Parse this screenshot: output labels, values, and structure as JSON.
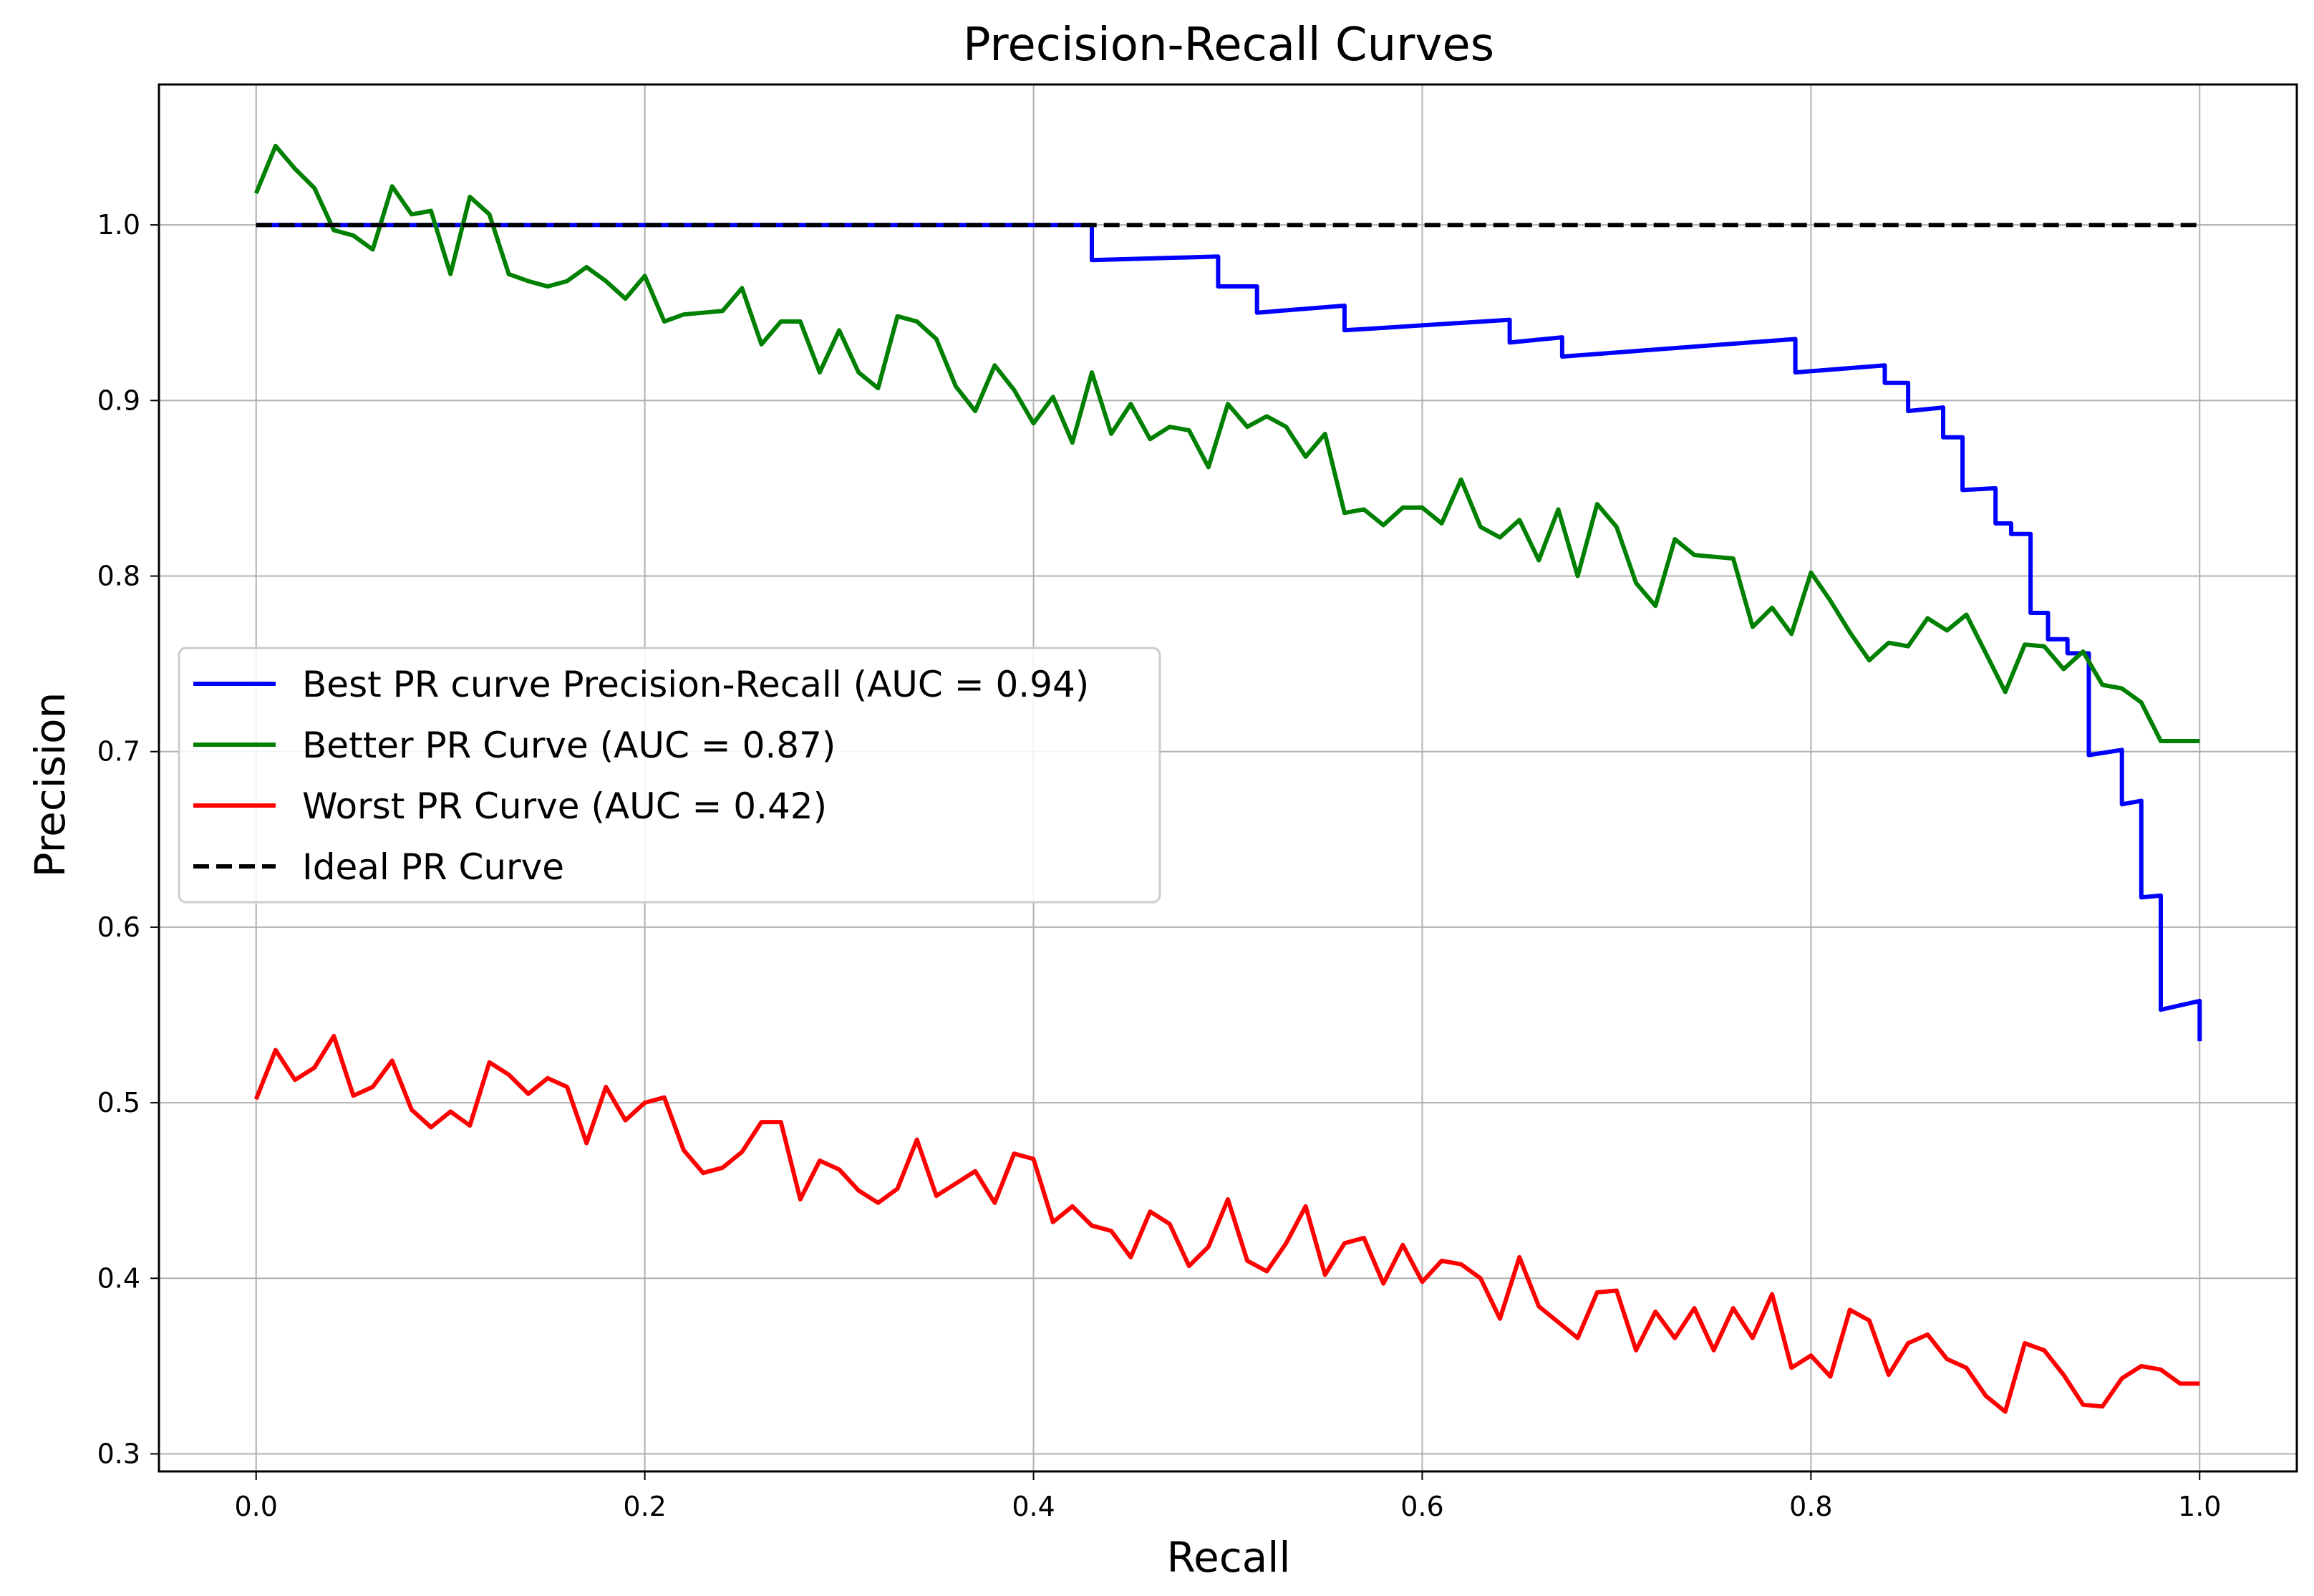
{
  "chart_data": {
    "type": "line",
    "title": "Precision-Recall Curves",
    "xlabel": "Recall",
    "ylabel": "Precision",
    "xlim": [
      -0.05,
      1.05
    ],
    "ylim": [
      0.29,
      1.08
    ],
    "xticks": [
      0.0,
      0.2,
      0.4,
      0.6,
      0.8,
      1.0
    ],
    "xtick_labels": [
      "0.0",
      "0.2",
      "0.4",
      "0.6",
      "0.8",
      "1.0"
    ],
    "yticks": [
      0.3,
      0.4,
      0.5,
      0.6,
      0.7,
      0.8,
      0.9,
      1.0
    ],
    "ytick_labels": [
      "0.3",
      "0.4",
      "0.5",
      "0.6",
      "0.7",
      "0.8",
      "0.9",
      "1.0"
    ],
    "grid": true,
    "legend_position": "center-left",
    "series": [
      {
        "name": "Best PR curve Precision-Recall (AUC = 0.94)",
        "color": "#0000ff",
        "style": "solid",
        "x": [
          0.0,
          0.43,
          0.43,
          0.495,
          0.495,
          0.515,
          0.515,
          0.56,
          0.56,
          0.645,
          0.645,
          0.672,
          0.672,
          0.792,
          0.792,
          0.838,
          0.838,
          0.85,
          0.85,
          0.868,
          0.868,
          0.878,
          0.878,
          0.895,
          0.895,
          0.903,
          0.903,
          0.913,
          0.913,
          0.922,
          0.922,
          0.932,
          0.932,
          0.943,
          0.943,
          0.96,
          0.96,
          0.97,
          0.97,
          0.98,
          0.98,
          1.0,
          1.0
        ],
        "y": [
          1.0,
          1.0,
          0.98,
          0.982,
          0.965,
          0.965,
          0.95,
          0.954,
          0.94,
          0.946,
          0.933,
          0.936,
          0.925,
          0.935,
          0.916,
          0.92,
          0.91,
          0.91,
          0.894,
          0.896,
          0.879,
          0.879,
          0.849,
          0.85,
          0.83,
          0.83,
          0.824,
          0.824,
          0.779,
          0.779,
          0.764,
          0.764,
          0.756,
          0.756,
          0.698,
          0.701,
          0.67,
          0.672,
          0.617,
          0.618,
          0.553,
          0.558,
          0.535
        ]
      },
      {
        "name": "Better PR Curve (AUC = 0.87)",
        "color": "#008000",
        "style": "solid",
        "x": [
          0.0,
          0.01,
          0.02,
          0.03,
          0.04,
          0.05,
          0.06,
          0.07,
          0.08,
          0.09,
          0.1,
          0.11,
          0.12,
          0.13,
          0.14,
          0.15,
          0.16,
          0.17,
          0.18,
          0.19,
          0.2,
          0.21,
          0.22,
          0.23,
          0.24,
          0.25,
          0.26,
          0.27,
          0.28,
          0.29,
          0.3,
          0.31,
          0.32,
          0.33,
          0.34,
          0.35,
          0.36,
          0.37,
          0.38,
          0.39,
          0.4,
          0.41,
          0.42,
          0.43,
          0.44,
          0.45,
          0.46,
          0.47,
          0.48,
          0.49,
          0.5,
          0.51,
          0.52,
          0.53,
          0.54,
          0.55,
          0.56,
          0.57,
          0.58,
          0.59,
          0.6,
          0.61,
          0.62,
          0.63,
          0.64,
          0.65,
          0.66,
          0.67,
          0.68,
          0.69,
          0.7,
          0.71,
          0.72,
          0.73,
          0.74,
          0.75,
          0.76,
          0.77,
          0.78,
          0.79,
          0.8,
          0.81,
          0.82,
          0.83,
          0.84,
          0.85,
          0.86,
          0.87,
          0.88,
          0.89,
          0.9,
          0.91,
          0.92,
          0.93,
          0.94,
          0.95,
          0.96,
          0.97,
          0.98,
          0.99,
          1.0
        ],
        "y": [
          1.018,
          1.045,
          1.032,
          1.021,
          0.997,
          0.994,
          0.986,
          1.022,
          1.006,
          1.008,
          0.972,
          1.016,
          1.006,
          0.972,
          0.968,
          0.965,
          0.968,
          0.976,
          0.968,
          0.958,
          0.971,
          0.945,
          0.949,
          0.95,
          0.951,
          0.964,
          0.932,
          0.945,
          0.945,
          0.916,
          0.94,
          0.916,
          0.907,
          0.948,
          0.945,
          0.935,
          0.908,
          0.894,
          0.92,
          0.906,
          0.887,
          0.902,
          0.876,
          0.916,
          0.881,
          0.898,
          0.878,
          0.885,
          0.883,
          0.862,
          0.898,
          0.885,
          0.891,
          0.885,
          0.868,
          0.881,
          0.836,
          0.838,
          0.829,
          0.839,
          0.839,
          0.83,
          0.855,
          0.828,
          0.822,
          0.832,
          0.809,
          0.838,
          0.8,
          0.841,
          0.828,
          0.796,
          0.783,
          0.821,
          0.812,
          0.811,
          0.81,
          0.771,
          0.782,
          0.767,
          0.802,
          0.786,
          0.768,
          0.752,
          0.762,
          0.76,
          0.776,
          0.769,
          0.778,
          0.756,
          0.734,
          0.761,
          0.76,
          0.747,
          0.757,
          0.738,
          0.736,
          0.728,
          0.706,
          0.706,
          0.706
        ]
      },
      {
        "name": "Worst PR Curve (AUC = 0.42)",
        "color": "#ff0000",
        "style": "solid",
        "x": [
          0.0,
          0.01,
          0.02,
          0.03,
          0.04,
          0.05,
          0.06,
          0.07,
          0.08,
          0.09,
          0.1,
          0.11,
          0.12,
          0.13,
          0.14,
          0.15,
          0.16,
          0.17,
          0.18,
          0.19,
          0.2,
          0.21,
          0.22,
          0.23,
          0.24,
          0.25,
          0.26,
          0.27,
          0.28,
          0.29,
          0.3,
          0.31,
          0.32,
          0.33,
          0.34,
          0.35,
          0.36,
          0.37,
          0.38,
          0.39,
          0.4,
          0.41,
          0.42,
          0.43,
          0.44,
          0.45,
          0.46,
          0.47,
          0.48,
          0.49,
          0.5,
          0.51,
          0.52,
          0.53,
          0.54,
          0.55,
          0.56,
          0.57,
          0.58,
          0.59,
          0.6,
          0.61,
          0.62,
          0.63,
          0.64,
          0.65,
          0.66,
          0.67,
          0.68,
          0.69,
          0.7,
          0.71,
          0.72,
          0.73,
          0.74,
          0.75,
          0.76,
          0.77,
          0.78,
          0.79,
          0.8,
          0.81,
          0.82,
          0.83,
          0.84,
          0.85,
          0.86,
          0.87,
          0.88,
          0.89,
          0.9,
          0.91,
          0.92,
          0.93,
          0.94,
          0.95,
          0.96,
          0.97,
          0.98,
          0.99,
          1.0
        ],
        "y": [
          0.502,
          0.53,
          0.513,
          0.52,
          0.538,
          0.504,
          0.509,
          0.524,
          0.496,
          0.486,
          0.495,
          0.487,
          0.523,
          0.516,
          0.505,
          0.514,
          0.509,
          0.477,
          0.509,
          0.49,
          0.5,
          0.503,
          0.473,
          0.46,
          0.463,
          0.472,
          0.489,
          0.489,
          0.445,
          0.467,
          0.462,
          0.45,
          0.443,
          0.451,
          0.479,
          0.447,
          0.454,
          0.461,
          0.443,
          0.471,
          0.468,
          0.432,
          0.441,
          0.43,
          0.427,
          0.412,
          0.438,
          0.431,
          0.407,
          0.418,
          0.445,
          0.41,
          0.404,
          0.42,
          0.441,
          0.402,
          0.42,
          0.423,
          0.397,
          0.419,
          0.398,
          0.41,
          0.408,
          0.4,
          0.377,
          0.412,
          0.384,
          0.375,
          0.366,
          0.392,
          0.393,
          0.359,
          0.381,
          0.366,
          0.383,
          0.359,
          0.383,
          0.366,
          0.391,
          0.349,
          0.356,
          0.344,
          0.382,
          0.376,
          0.345,
          0.363,
          0.368,
          0.354,
          0.349,
          0.333,
          0.324,
          0.363,
          0.359,
          0.345,
          0.328,
          0.327,
          0.343,
          0.35,
          0.348,
          0.34,
          0.34
        ]
      },
      {
        "name": "Ideal PR Curve",
        "color": "#000000",
        "style": "dashed",
        "x": [
          0.0,
          1.0
        ],
        "y": [
          1.0,
          1.0
        ]
      }
    ]
  }
}
